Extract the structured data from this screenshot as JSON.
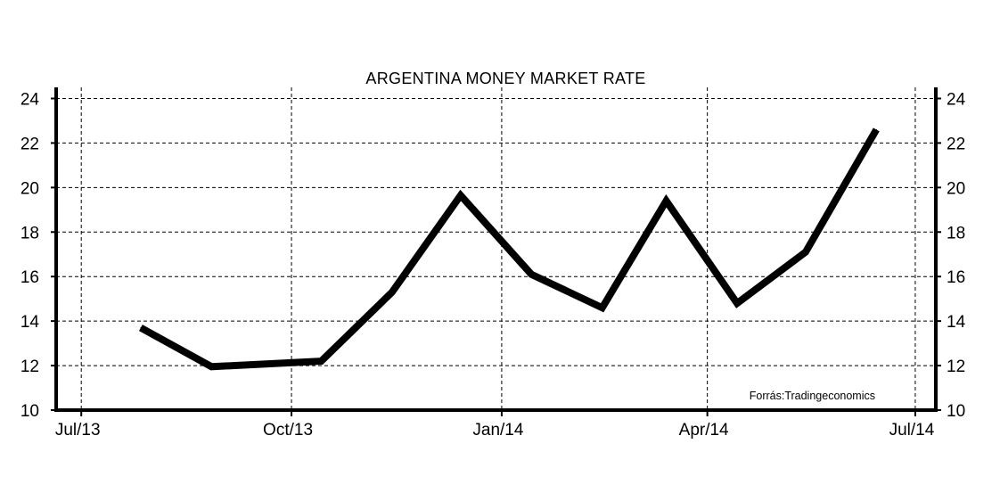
{
  "chart_data": {
    "type": "line",
    "title": "ARGENTINA MONEY MARKET RATE",
    "source": "Forrás:Tradingeconomics",
    "xlabel": "",
    "ylabel": "",
    "x_tick_labels": [
      "Jul/13",
      "Oct/13",
      "Jan/14",
      "Apr/14",
      "Jul/14"
    ],
    "x_tick_dates": [
      "2013-07-01",
      "2013-10-01",
      "2014-01-01",
      "2014-04-01",
      "2014-07-01"
    ],
    "xlim": [
      "2013-06-20",
      "2014-07-10"
    ],
    "y_ticks": [
      10,
      12,
      14,
      16,
      18,
      20,
      22,
      24
    ],
    "y_tick_labels": [
      "10",
      "12",
      "14",
      "16",
      "18",
      "20",
      "22",
      "24"
    ],
    "ylim": [
      10,
      24.5
    ],
    "grid": true,
    "y_axis_both_sides": true,
    "legend": "none",
    "series": [
      {
        "color": "#000000",
        "x": [
          "2013-07-27",
          "2013-08-27",
          "2013-10-14",
          "2013-11-14",
          "2013-12-14",
          "2014-01-14",
          "2014-02-14",
          "2014-03-14",
          "2014-04-14",
          "2014-05-14",
          "2014-06-14"
        ],
        "y": [
          13.7,
          11.95,
          12.2,
          15.3,
          19.65,
          16.1,
          14.6,
          19.4,
          14.8,
          17.1,
          22.6
        ]
      }
    ]
  }
}
